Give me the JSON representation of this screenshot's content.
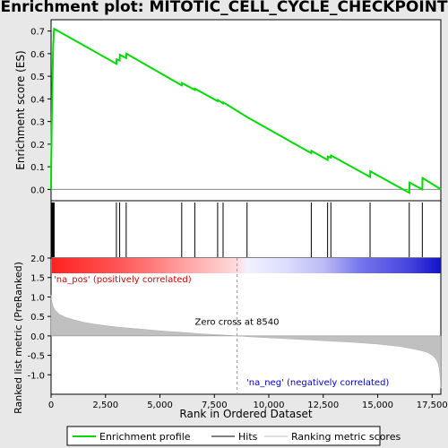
{
  "chart_data": {
    "type": "line",
    "title": "Enrichment plot: MITOTIC_CELL_CYCLE_CHECKPOINT",
    "top_panel": {
      "ylabel": "Enrichment score (ES)",
      "ylim": [
        -0.05,
        0.75
      ],
      "yticks": [
        0.0,
        0.1,
        0.2,
        0.3,
        0.4,
        0.5,
        0.6,
        0.7
      ],
      "ytick_labels": [
        "0.0",
        "0.1",
        "0.2",
        "0.3",
        "0.4",
        "0.5",
        "0.6",
        "0.7"
      ],
      "series": [
        {
          "name": "Enrichment profile",
          "color": "#00dd00",
          "x": [
            0,
            10,
            20,
            30,
            40,
            50,
            60,
            70,
            80,
            90,
            100,
            110,
            120,
            130,
            140,
            3000,
            3010,
            3150,
            3160,
            3450,
            3460,
            6000,
            6010,
            6600,
            6610,
            7650,
            7660,
            7900,
            7910,
            9000,
            11950,
            11960,
            12700,
            12710,
            12850,
            12860,
            14650,
            14660,
            16450,
            16460,
            17050,
            17060,
            17900
          ],
          "y": [
            0.0,
            0.13,
            0.2,
            0.28,
            0.35,
            0.4,
            0.46,
            0.5,
            0.55,
            0.6,
            0.64,
            0.66,
            0.69,
            0.7,
            0.71,
            0.555,
            0.575,
            0.57,
            0.595,
            0.58,
            0.6,
            0.46,
            0.47,
            0.44,
            0.445,
            0.39,
            0.395,
            0.38,
            0.385,
            0.32,
            0.16,
            0.17,
            0.13,
            0.145,
            0.14,
            0.15,
            0.055,
            0.08,
            -0.015,
            0.03,
            0.0,
            0.05,
            0.0
          ]
        }
      ]
    },
    "hits_panel": {
      "hit_positions": [
        10,
        20,
        30,
        40,
        50,
        60,
        70,
        80,
        90,
        100,
        110,
        120,
        130,
        140,
        3000,
        3150,
        3450,
        6000,
        6600,
        7650,
        7900,
        9000,
        11950,
        12700,
        12850,
        14650,
        16450,
        17050
      ]
    },
    "bottom_panel": {
      "ylabel": "Ranked list metric (PreRanked)",
      "xlabel": "Rank in Ordered Dataset",
      "ylim": [
        -1.5,
        2.0
      ],
      "yticks": [
        -1.0,
        -0.5,
        0.0,
        0.5,
        1.0,
        1.5,
        2.0
      ],
      "ytick_labels": [
        "-1.0",
        "-0.5",
        "0.0",
        "0.5",
        "1.0",
        "1.5",
        "2.0"
      ],
      "xlim": [
        0,
        17900
      ],
      "xticks": [
        0,
        2500,
        5000,
        7500,
        10000,
        12500,
        15000,
        17500
      ],
      "xtick_labels": [
        "0",
        "2,500",
        "5,000",
        "7,500",
        "10,000",
        "12,500",
        "15,000",
        "17,500"
      ],
      "metric_curve": {
        "x": [
          0,
          30,
          100,
          200,
          400,
          700,
          1000,
          1500,
          2000,
          3000,
          4000,
          5000,
          6000,
          7000,
          8000,
          8540,
          9000,
          10000,
          11000,
          12000,
          13000,
          14000,
          15000,
          16000,
          16500,
          17000,
          17300,
          17500,
          17600,
          17700,
          17780,
          17830,
          17870,
          17900
        ],
        "y": [
          1.05,
          0.9,
          0.75,
          0.65,
          0.55,
          0.47,
          0.42,
          0.35,
          0.3,
          0.23,
          0.18,
          0.13,
          0.09,
          0.05,
          0.02,
          0.0,
          -0.02,
          -0.05,
          -0.08,
          -0.11,
          -0.14,
          -0.17,
          -0.21,
          -0.27,
          -0.32,
          -0.38,
          -0.43,
          -0.5,
          -0.55,
          -0.62,
          -0.72,
          -0.85,
          -1.1,
          -1.35
        ]
      },
      "zero_cross_label": "Zero cross at 8540",
      "zero_cross_rank": 8540,
      "pos_label": "'na_pos' (positively correlated)",
      "neg_label": "'na_neg' (negatively correlated)",
      "pos_color": "#dd0000",
      "neg_color": "#0000cc"
    },
    "legend": [
      {
        "label": "Enrichment profile",
        "color": "#00dd00"
      },
      {
        "label": "Hits",
        "color": "#000000"
      },
      {
        "label": "Ranking metric scores",
        "color": "#c0c0c0"
      }
    ],
    "legend_position": "bottom"
  }
}
